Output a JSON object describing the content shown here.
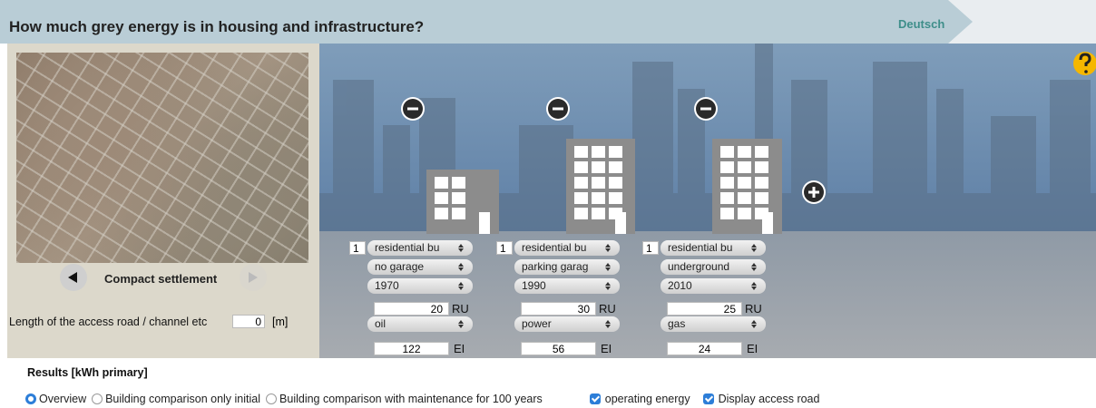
{
  "header": {
    "title": "How much grey energy is in housing and infrastructure?",
    "language": "Deutsch"
  },
  "settlement": {
    "name": "Compact settlement",
    "access_road_label": "Length of the access road / channel etc",
    "access_road_value": 0,
    "access_road_unit": "[m]"
  },
  "buildings": [
    {
      "count": 1,
      "type": "residential bu",
      "garage": "no garage",
      "year": "1970",
      "ru_value": 20,
      "ru_unit": "RU",
      "heating": "oil",
      "ei_value": 122,
      "ei_unit": "EI"
    },
    {
      "count": 1,
      "type": "residential bu",
      "garage": "parking garag",
      "year": "1990",
      "ru_value": 30,
      "ru_unit": "RU",
      "heating": "power",
      "ei_value": 56,
      "ei_unit": "EI"
    },
    {
      "count": 1,
      "type": "residential bu",
      "garage": "underground",
      "year": "2010",
      "ru_value": 25,
      "ru_unit": "RU",
      "heating": "gas",
      "ei_value": 24,
      "ei_unit": "EI"
    }
  ],
  "results": {
    "title": "Results [kWh primary]",
    "views": [
      "Overview",
      "Building comparison only initial",
      "Building comparison with maintenance for 100 years"
    ],
    "options": [
      "operating energy",
      "Display access road"
    ]
  }
}
